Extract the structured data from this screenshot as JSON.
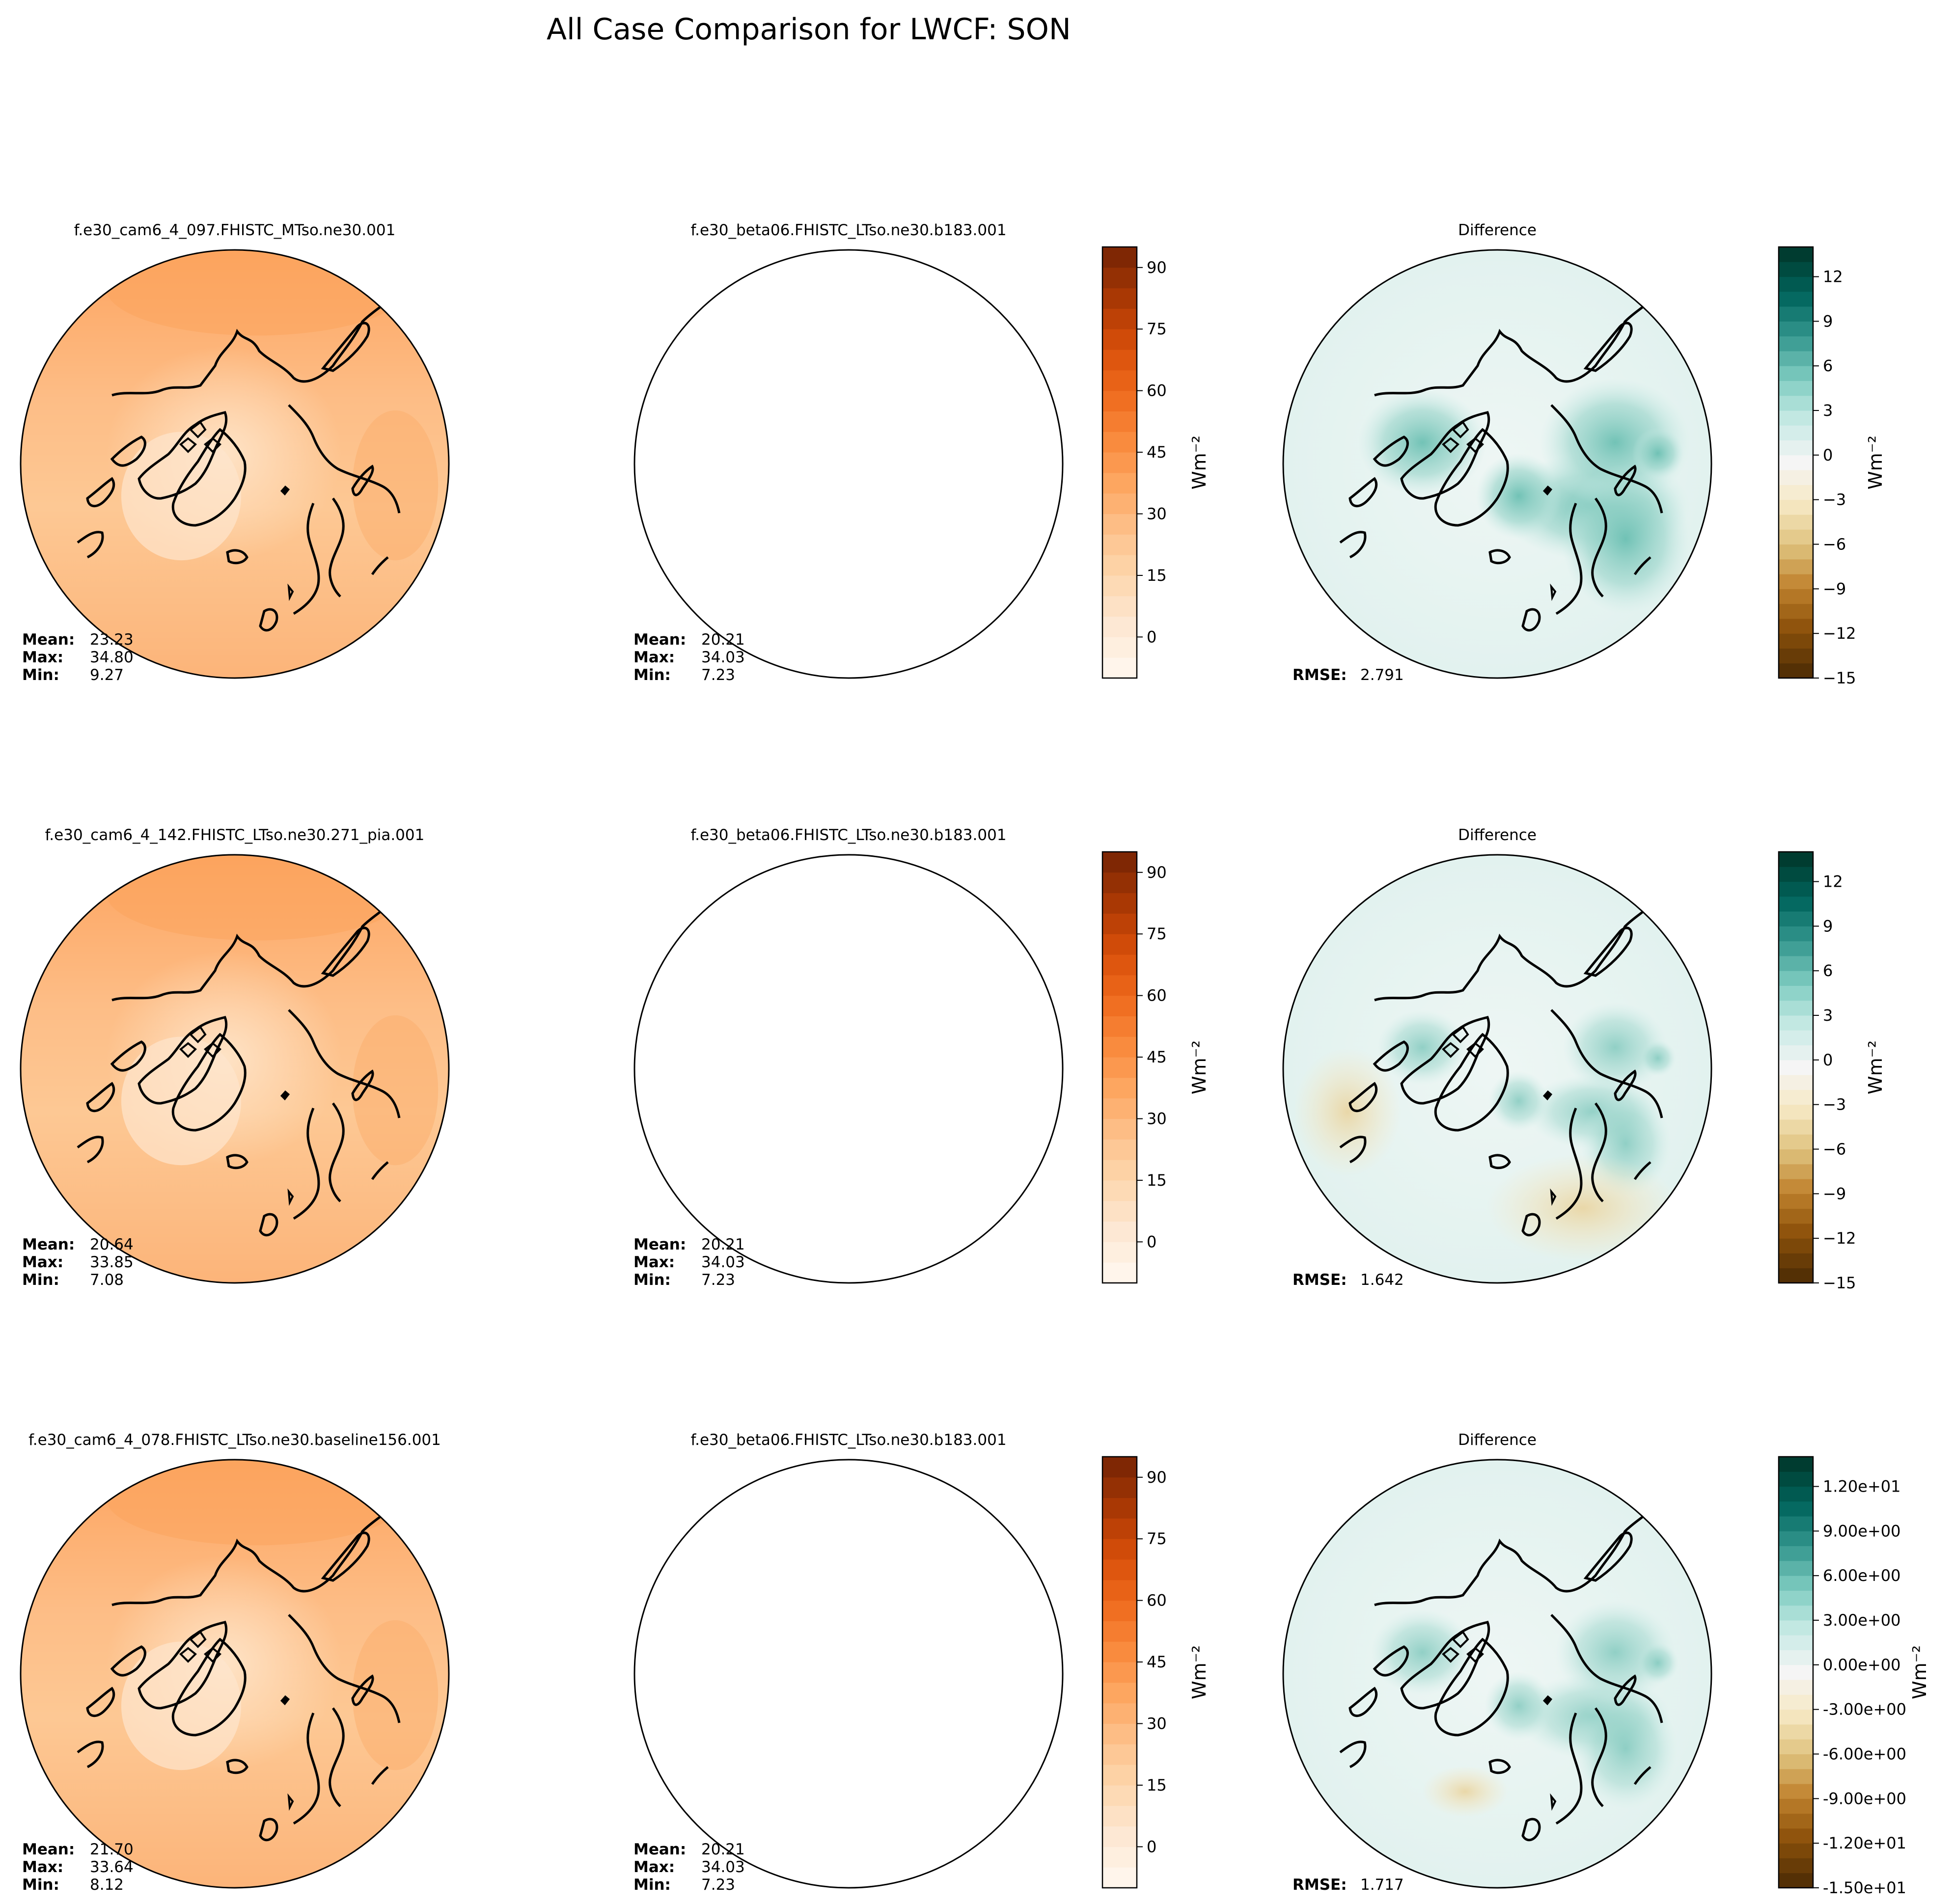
{
  "figure": {
    "title": "All Case Comparison for LWCF: SON",
    "stat_labels": {
      "mean": "Mean:",
      "max": "Max:",
      "min": "Min:",
      "rmse": "RMSE:"
    },
    "unit_label": "Wm⁻²"
  },
  "colorbars": {
    "field": {
      "ticks": [
        "90",
        "75",
        "60",
        "45",
        "30",
        "15",
        "0"
      ],
      "colors": [
        "#fff5eb",
        "#fde7d1",
        "#fdd7ae",
        "#fdc18b",
        "#fda762",
        "#f9893c",
        "#ee6a1d",
        "#d94f0a",
        "#ae3a04",
        "#7f2704"
      ]
    },
    "diff": {
      "ticks": [
        "12",
        "9",
        "6",
        "3",
        "0",
        "−3",
        "−6",
        "−9",
        "−12",
        "−15"
      ],
      "ticks_sci": [
        "1.20e+01",
        "9.00e+00",
        "6.00e+00",
        "3.00e+00",
        "0.00e+00",
        "-3.00e+00",
        "-6.00e+00",
        "-9.00e+00",
        "-1.20e+01",
        "-1.50e+01"
      ],
      "colors": [
        "#543005",
        "#8c510a",
        "#bf812d",
        "#dfc27d",
        "#f6e8c3",
        "#f5f5f5",
        "#c7eae5",
        "#80cdc1",
        "#35978f",
        "#01665e",
        "#003c30"
      ]
    }
  },
  "rows": [
    {
      "test": {
        "title": "f.e30_cam6_4_097.FHISTC_MTso.ne30.001",
        "mean": "23.23",
        "max": "34.80",
        "min": "9.27"
      },
      "baseline": {
        "title": "f.e30_beta06.FHISTC_LTso.ne30.b183.001",
        "mean": "20.21",
        "max": "34.03",
        "min": "7.23"
      },
      "diff": {
        "title": "Difference",
        "rmse": "2.791"
      }
    },
    {
      "test": {
        "title": "f.e30_cam6_4_142.FHISTC_LTso.ne30.271_pia.001",
        "mean": "20.64",
        "max": "33.85",
        "min": "7.08"
      },
      "baseline": {
        "title": "f.e30_beta06.FHISTC_LTso.ne30.b183.001",
        "mean": "20.21",
        "max": "34.03",
        "min": "7.23"
      },
      "diff": {
        "title": "Difference",
        "rmse": "1.642"
      }
    },
    {
      "test": {
        "title": "f.e30_cam6_4_078.FHISTC_LTso.ne30.baseline156.001",
        "mean": "21.70",
        "max": "33.64",
        "min": "8.12"
      },
      "baseline": {
        "title": "f.e30_beta06.FHISTC_LTso.ne30.b183.001",
        "mean": "20.21",
        "max": "34.03",
        "min": "7.23"
      },
      "diff": {
        "title": "Difference",
        "rmse": "1.717"
      }
    }
  ]
}
